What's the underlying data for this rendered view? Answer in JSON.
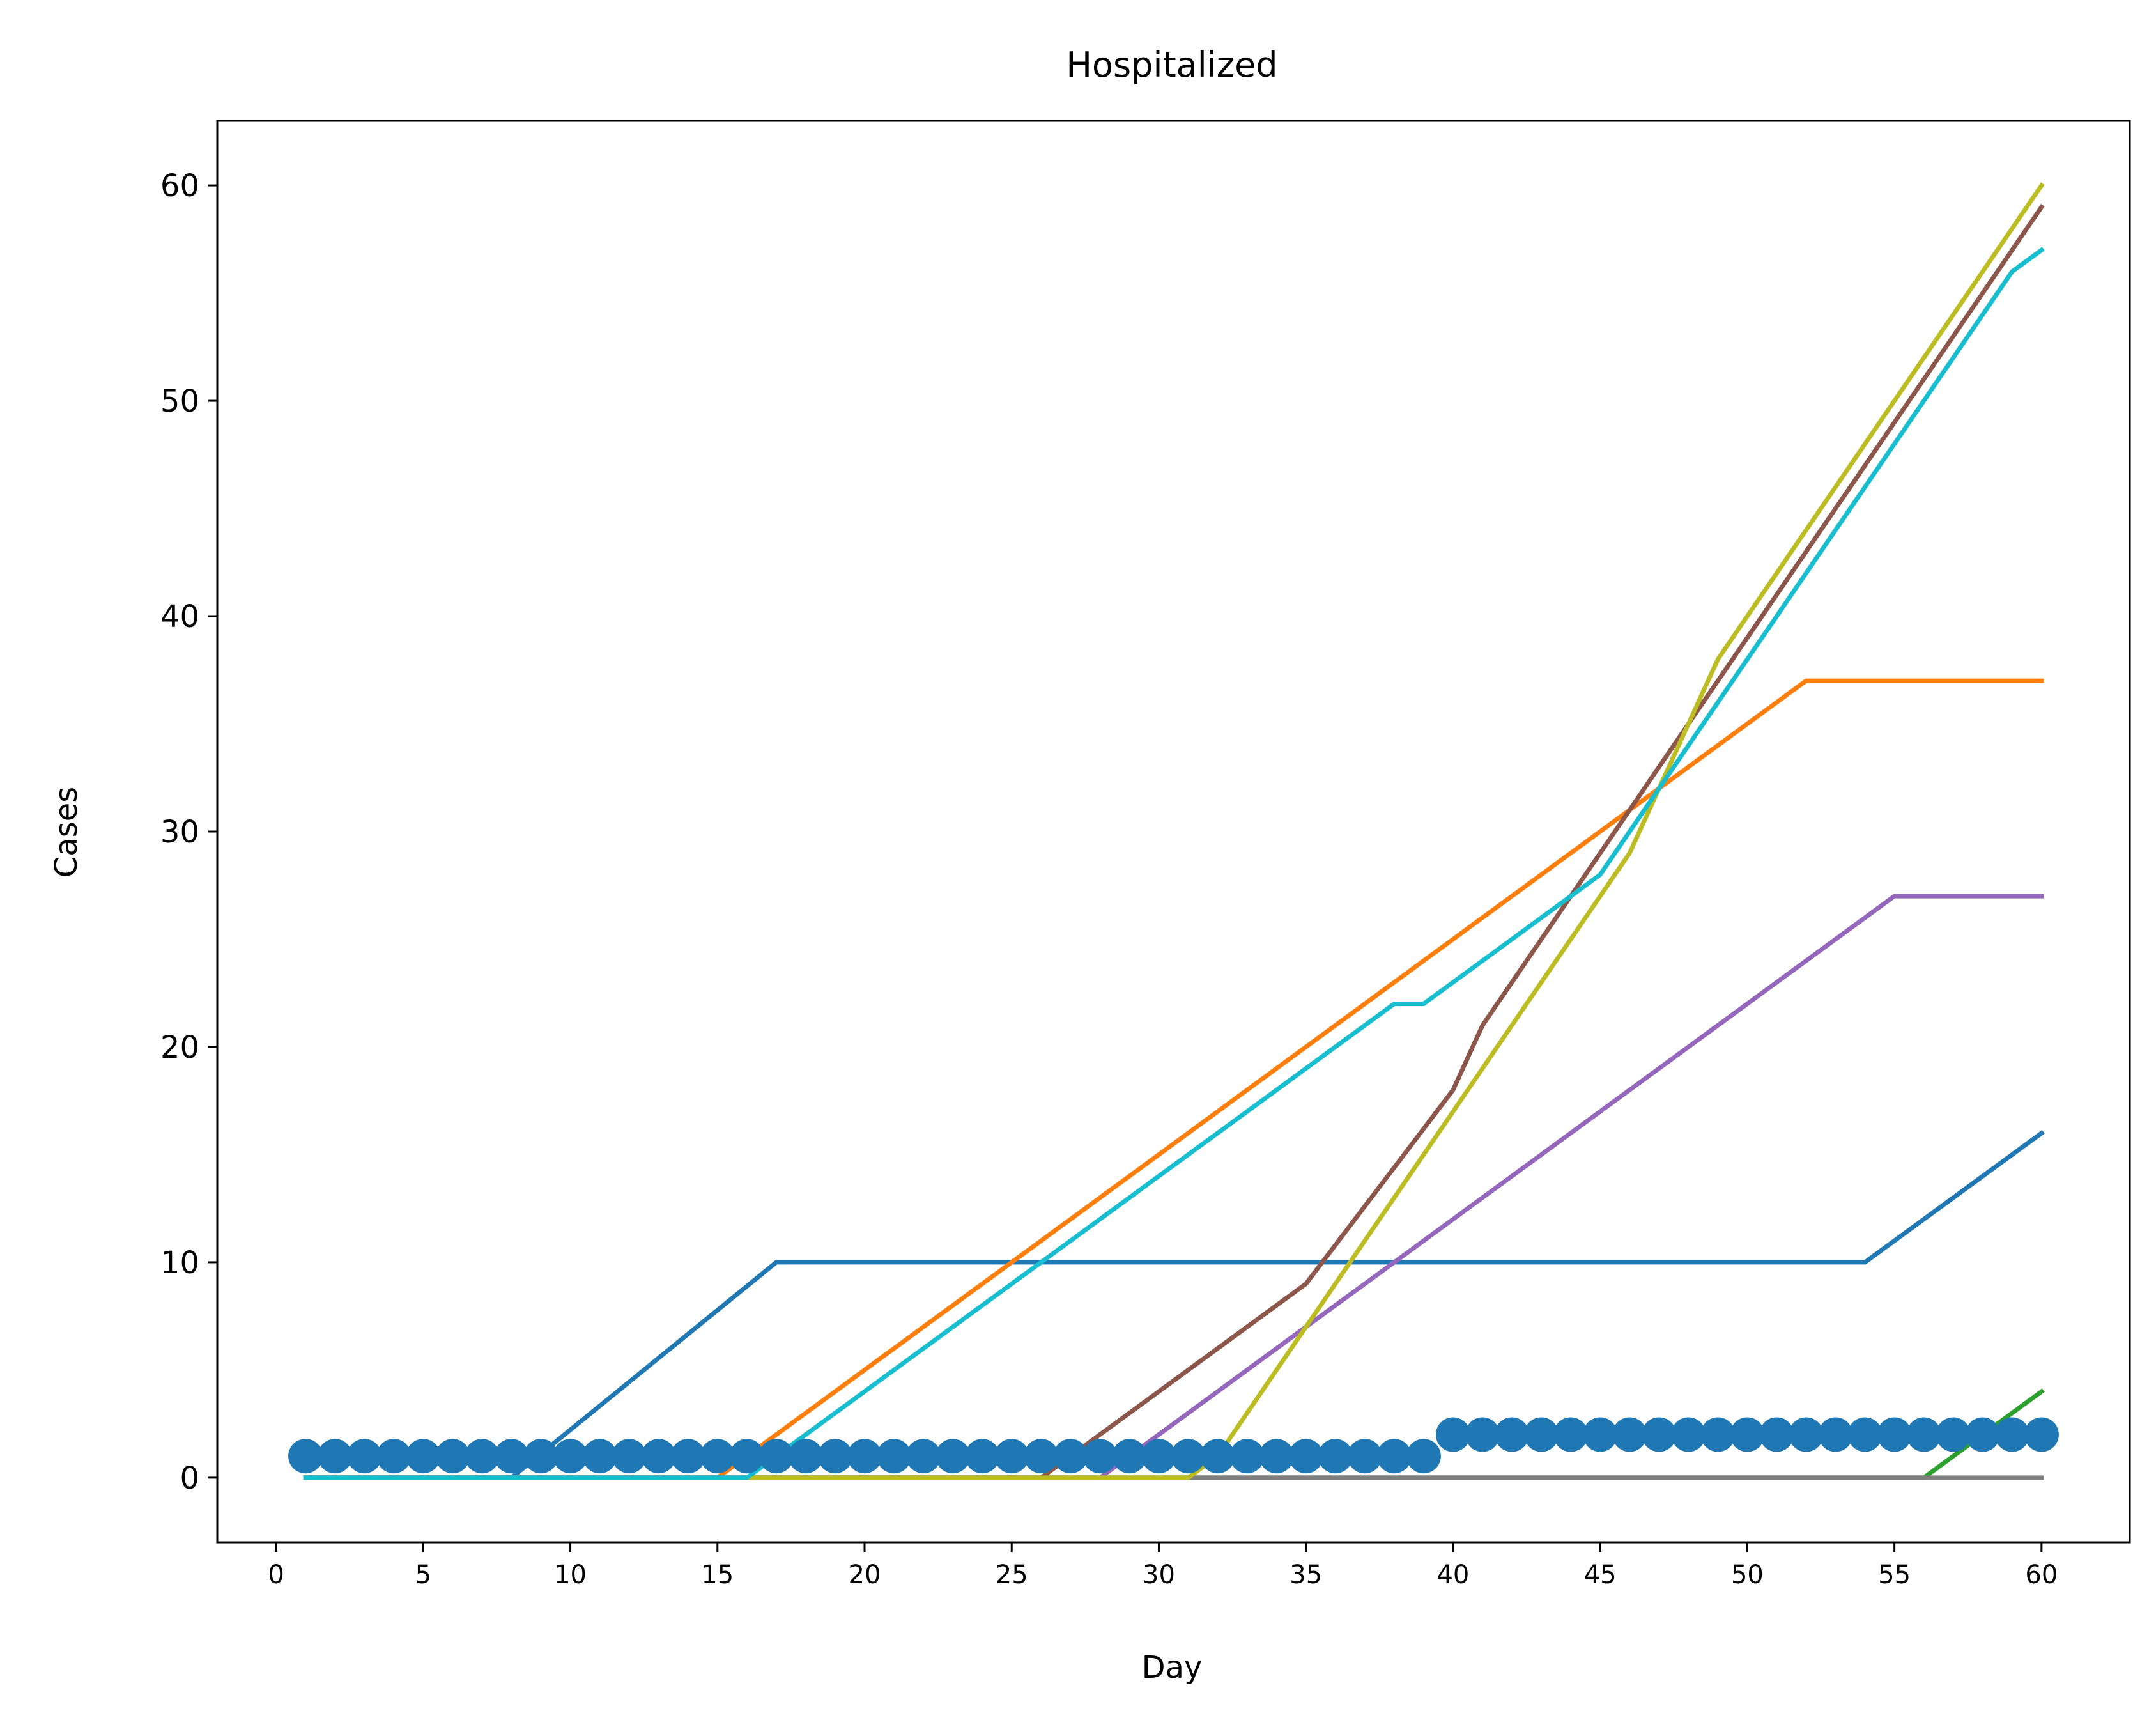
{
  "chart_data": {
    "type": "line",
    "title": "Hospitalized",
    "xlabel": "Day",
    "ylabel": "Cases",
    "xlim": [
      -2,
      63
    ],
    "ylim": [
      -3,
      63
    ],
    "xticks": [
      0,
      5,
      10,
      15,
      20,
      25,
      30,
      35,
      40,
      45,
      50,
      55,
      60
    ],
    "yticks": [
      0,
      10,
      20,
      30,
      40,
      50,
      60
    ],
    "grid": false,
    "legend": "none",
    "series": [
      {
        "color": "#1f77b4",
        "style": "line",
        "points": [
          [
            1,
            0
          ],
          [
            8,
            0
          ],
          [
            17,
            10
          ],
          [
            54,
            10
          ],
          [
            60,
            16
          ]
        ]
      },
      {
        "color": "#ff7f0e",
        "style": "line",
        "points": [
          [
            1,
            0
          ],
          [
            15,
            0
          ],
          [
            52,
            37
          ],
          [
            60,
            37
          ]
        ]
      },
      {
        "color": "#2ca02c",
        "style": "line",
        "points": [
          [
            1,
            0
          ],
          [
            56,
            0
          ],
          [
            60,
            4
          ]
        ]
      },
      {
        "color": "#9467bd",
        "style": "line",
        "points": [
          [
            1,
            0
          ],
          [
            28,
            0
          ],
          [
            55,
            27
          ],
          [
            60,
            27
          ]
        ]
      },
      {
        "color": "#8c564b",
        "style": "line",
        "points": [
          [
            1,
            0
          ],
          [
            26,
            0
          ],
          [
            35,
            9
          ],
          [
            40,
            18
          ],
          [
            41,
            21
          ],
          [
            60,
            59
          ]
        ]
      },
      {
        "color": "#7f7f7f",
        "style": "line",
        "points": [
          [
            1,
            0
          ],
          [
            60,
            0
          ]
        ]
      },
      {
        "color": "#bcbd22",
        "style": "line",
        "points": [
          [
            1,
            0
          ],
          [
            31,
            0
          ],
          [
            32,
            1
          ],
          [
            46,
            29
          ],
          [
            49,
            38
          ],
          [
            60,
            60
          ]
        ]
      },
      {
        "color": "#17becf",
        "style": "line",
        "points": [
          [
            1,
            0
          ],
          [
            16,
            0
          ],
          [
            38,
            22
          ],
          [
            39,
            22
          ],
          [
            45,
            28
          ],
          [
            59,
            56
          ],
          [
            60,
            57
          ]
        ]
      },
      {
        "color": "#1f77b4",
        "style": "markers",
        "x": [
          1,
          2,
          3,
          4,
          5,
          6,
          7,
          8,
          9,
          10,
          11,
          12,
          13,
          14,
          15,
          16,
          17,
          18,
          19,
          20,
          21,
          22,
          23,
          24,
          25,
          26,
          27,
          28,
          29,
          30,
          31,
          32,
          33,
          34,
          35,
          36,
          37,
          38,
          39,
          40,
          41,
          42,
          43,
          44,
          45,
          46,
          47,
          48,
          49,
          50,
          51,
          52,
          53,
          54,
          55,
          56,
          57,
          58,
          59,
          60
        ],
        "y": [
          1,
          1,
          1,
          1,
          1,
          1,
          1,
          1,
          1,
          1,
          1,
          1,
          1,
          1,
          1,
          1,
          1,
          1,
          1,
          1,
          1,
          1,
          1,
          1,
          1,
          1,
          1,
          1,
          1,
          1,
          1,
          1,
          1,
          1,
          1,
          1,
          1,
          1,
          1,
          2,
          2,
          2,
          2,
          2,
          2,
          2,
          2,
          2,
          2,
          2,
          2,
          2,
          2,
          2,
          2,
          2,
          2,
          2,
          2,
          2
        ]
      }
    ]
  }
}
